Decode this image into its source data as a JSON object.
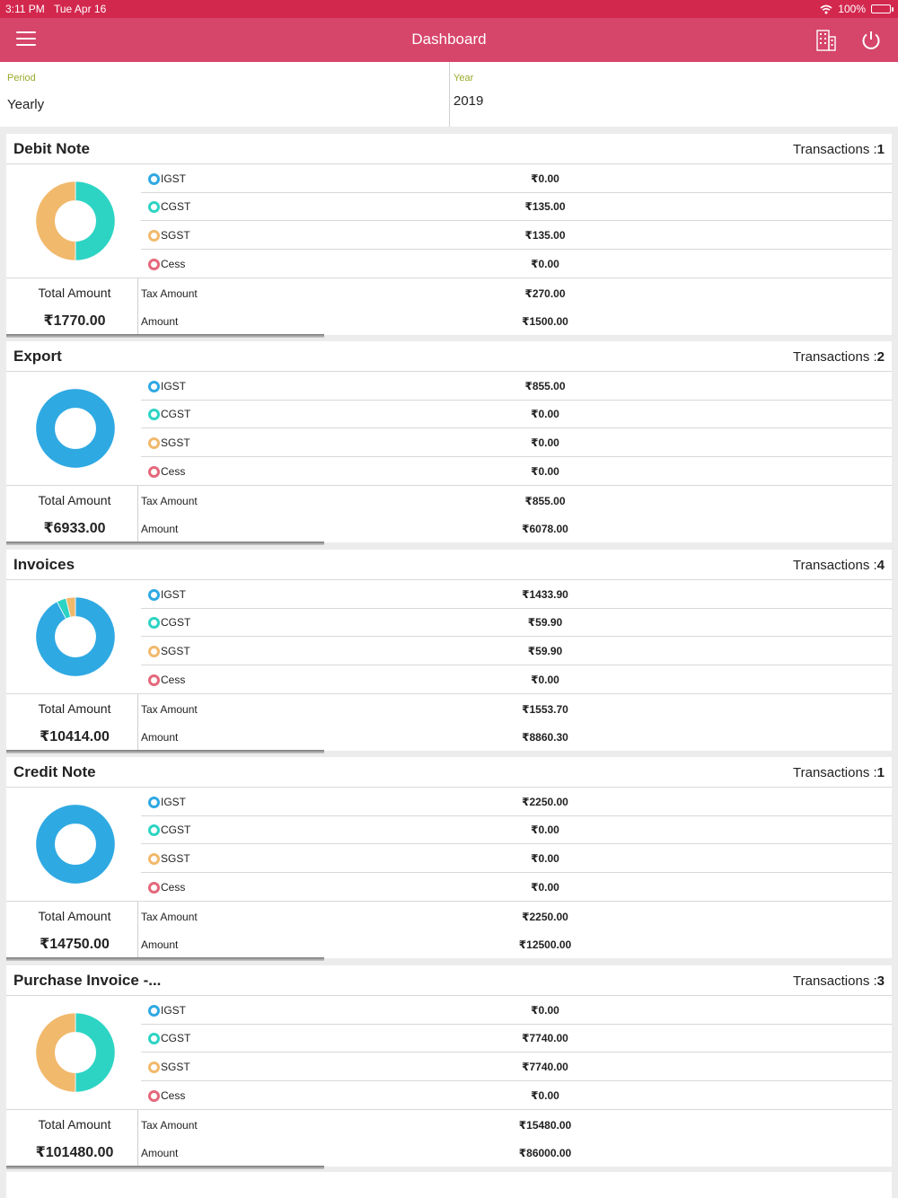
{
  "status_bar": {
    "time": "3:11 PM",
    "date": "Tue Apr 16",
    "battery": "100%"
  },
  "header": {
    "title": "Dashboard",
    "menu_icon": "hamburger-icon",
    "company_icon": "building-icon",
    "logout_icon": "power-icon"
  },
  "filters": {
    "period": {
      "label": "Period",
      "value": "Yearly"
    },
    "year": {
      "label": "Year",
      "value": "2019"
    }
  },
  "colors": {
    "igst": "#2fa9e2",
    "cgst": "#2dd4c4",
    "sgst": "#f1b96c",
    "cess": "#e4687a",
    "accent": "#d6456a",
    "label_green": "#9aaa2a"
  },
  "cards": [
    {
      "title": "Debit Note",
      "transactions_label": "Transactions :",
      "transactions": "1",
      "breakdown": [
        {
          "name": "IGST",
          "value": "₹0.00"
        },
        {
          "name": "CGST",
          "value": "₹135.00"
        },
        {
          "name": "SGST",
          "value": "₹135.00"
        },
        {
          "name": "Cess",
          "value": "₹0.00"
        }
      ],
      "total_label": "Total Amount",
      "total": "₹1770.00",
      "tax_label": "Tax Amount",
      "tax": "₹270.00",
      "amount_label": "Amount",
      "amount": "₹1500.00"
    },
    {
      "title": "Export",
      "transactions_label": "Transactions :",
      "transactions": "2",
      "breakdown": [
        {
          "name": "IGST",
          "value": "₹855.00"
        },
        {
          "name": "CGST",
          "value": "₹0.00"
        },
        {
          "name": "SGST",
          "value": "₹0.00"
        },
        {
          "name": "Cess",
          "value": "₹0.00"
        }
      ],
      "total_label": "Total Amount",
      "total": "₹6933.00",
      "tax_label": "Tax Amount",
      "tax": "₹855.00",
      "amount_label": "Amount",
      "amount": "₹6078.00"
    },
    {
      "title": "Invoices",
      "transactions_label": "Transactions :",
      "transactions": "4",
      "breakdown": [
        {
          "name": "IGST",
          "value": "₹1433.90"
        },
        {
          "name": "CGST",
          "value": "₹59.90"
        },
        {
          "name": "SGST",
          "value": "₹59.90"
        },
        {
          "name": "Cess",
          "value": "₹0.00"
        }
      ],
      "total_label": "Total Amount",
      "total": "₹10414.00",
      "tax_label": "Tax Amount",
      "tax": "₹1553.70",
      "amount_label": "Amount",
      "amount": "₹8860.30"
    },
    {
      "title": "Credit Note",
      "transactions_label": "Transactions :",
      "transactions": "1",
      "breakdown": [
        {
          "name": "IGST",
          "value": "₹2250.00"
        },
        {
          "name": "CGST",
          "value": "₹0.00"
        },
        {
          "name": "SGST",
          "value": "₹0.00"
        },
        {
          "name": "Cess",
          "value": "₹0.00"
        }
      ],
      "total_label": "Total Amount",
      "total": "₹14750.00",
      "tax_label": "Tax Amount",
      "tax": "₹2250.00",
      "amount_label": "Amount",
      "amount": "₹12500.00"
    },
    {
      "title": "Purchase Invoice -...",
      "transactions_label": "Transactions :",
      "transactions": "3",
      "breakdown": [
        {
          "name": "IGST",
          "value": "₹0.00"
        },
        {
          "name": "CGST",
          "value": "₹7740.00"
        },
        {
          "name": "SGST",
          "value": "₹7740.00"
        },
        {
          "name": "Cess",
          "value": "₹0.00"
        }
      ],
      "total_label": "Total Amount",
      "total": "₹101480.00",
      "tax_label": "Tax Amount",
      "tax": "₹15480.00",
      "amount_label": "Amount",
      "amount": "₹86000.00"
    }
  ],
  "chart_data": [
    {
      "type": "pie",
      "categories": [
        "IGST",
        "CGST",
        "SGST",
        "Cess"
      ],
      "values": [
        0,
        135,
        135,
        0
      ]
    },
    {
      "type": "pie",
      "categories": [
        "IGST",
        "CGST",
        "SGST",
        "Cess"
      ],
      "values": [
        855,
        0,
        0,
        0
      ]
    },
    {
      "type": "pie",
      "categories": [
        "IGST",
        "CGST",
        "SGST",
        "Cess"
      ],
      "values": [
        1433.9,
        59.9,
        59.9,
        0
      ]
    },
    {
      "type": "pie",
      "categories": [
        "IGST",
        "CGST",
        "SGST",
        "Cess"
      ],
      "values": [
        2250,
        0,
        0,
        0
      ]
    },
    {
      "type": "pie",
      "categories": [
        "IGST",
        "CGST",
        "SGST",
        "Cess"
      ],
      "values": [
        0,
        7740,
        7740,
        0
      ]
    }
  ]
}
